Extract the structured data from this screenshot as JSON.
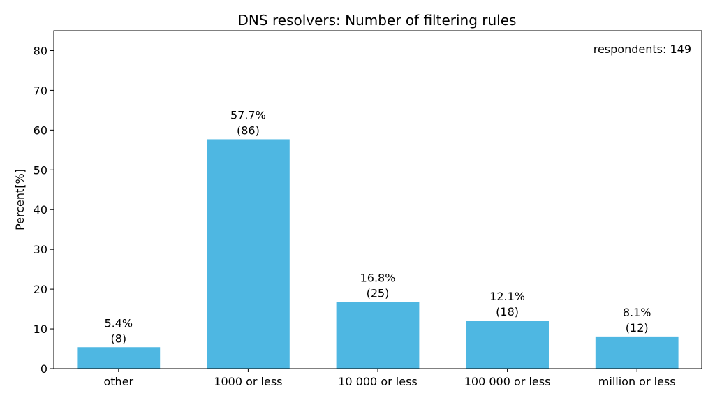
{
  "chart_data": {
    "type": "bar",
    "title": "DNS resolvers: Number of filtering rules",
    "xlabel": "",
    "ylabel": "Percent[%]",
    "annotation": "respondents: 149",
    "categories": [
      "other",
      "1000 or less",
      "10 000 or less",
      "100 000 or less",
      "million or less"
    ],
    "values": [
      5.4,
      57.7,
      16.8,
      12.1,
      8.1
    ],
    "counts": [
      8,
      86,
      25,
      18,
      12
    ],
    "value_labels": [
      "5.4%",
      "57.7%",
      "16.8%",
      "12.1%",
      "8.1%"
    ],
    "count_labels": [
      "(8)",
      "(86)",
      "(25)",
      "(18)",
      "(12)"
    ],
    "ylim": [
      0,
      85
    ],
    "yticks": [
      0,
      10,
      20,
      30,
      40,
      50,
      60,
      70,
      80
    ],
    "grid": false,
    "bar_color": "#4eb7e2"
  }
}
